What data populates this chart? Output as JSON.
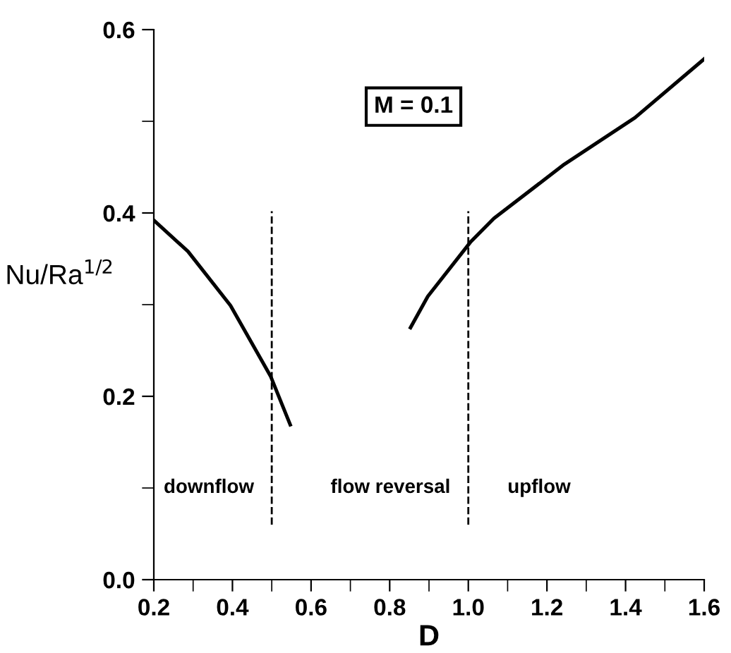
{
  "chart_data": {
    "type": "line",
    "xlabel": "D",
    "ylabel": "Nu/Ra$^{1/2}$",
    "series": [
      {
        "color": "#000000",
        "x": [
          0.2,
          0.287,
          0.395,
          0.497,
          0.547
        ],
        "values": [
          0.392,
          0.358,
          0.299,
          0.222,
          0.169
        ]
      },
      {
        "color": "#000000",
        "x": [
          0.853,
          0.897,
          1.005,
          1.065,
          1.244,
          1.424,
          1.6
        ],
        "values": [
          0.275,
          0.309,
          0.368,
          0.394,
          0.453,
          0.504,
          0.568
        ]
      }
    ],
    "xlim": [
      0.2,
      1.6
    ],
    "xticks": [
      0.2,
      0.4,
      0.6,
      0.8,
      {
        "value": 1.0,
        "label": "1.0"
      },
      1.2,
      1.4,
      1.6
    ],
    "ylim": [
      0.0,
      0.6
    ],
    "yticks": [
      {
        "value": 0.0,
        "label": "0.0"
      },
      0.2,
      0.4,
      0.6
    ],
    "ref_lines": [
      {
        "axis": "x",
        "value": 0.5,
        "color": "#000000",
        "line_style": "dashed"
      },
      {
        "axis": "x",
        "value": 1.0,
        "color": "#000000",
        "line_style": "dashed"
      }
    ],
    "annotations": [
      "M = 0.1",
      "downflow",
      "flow reversal",
      "upflow"
    ],
    "grid": false,
    "legend": false,
    "marker": "none",
    "line_style": "solid"
  }
}
